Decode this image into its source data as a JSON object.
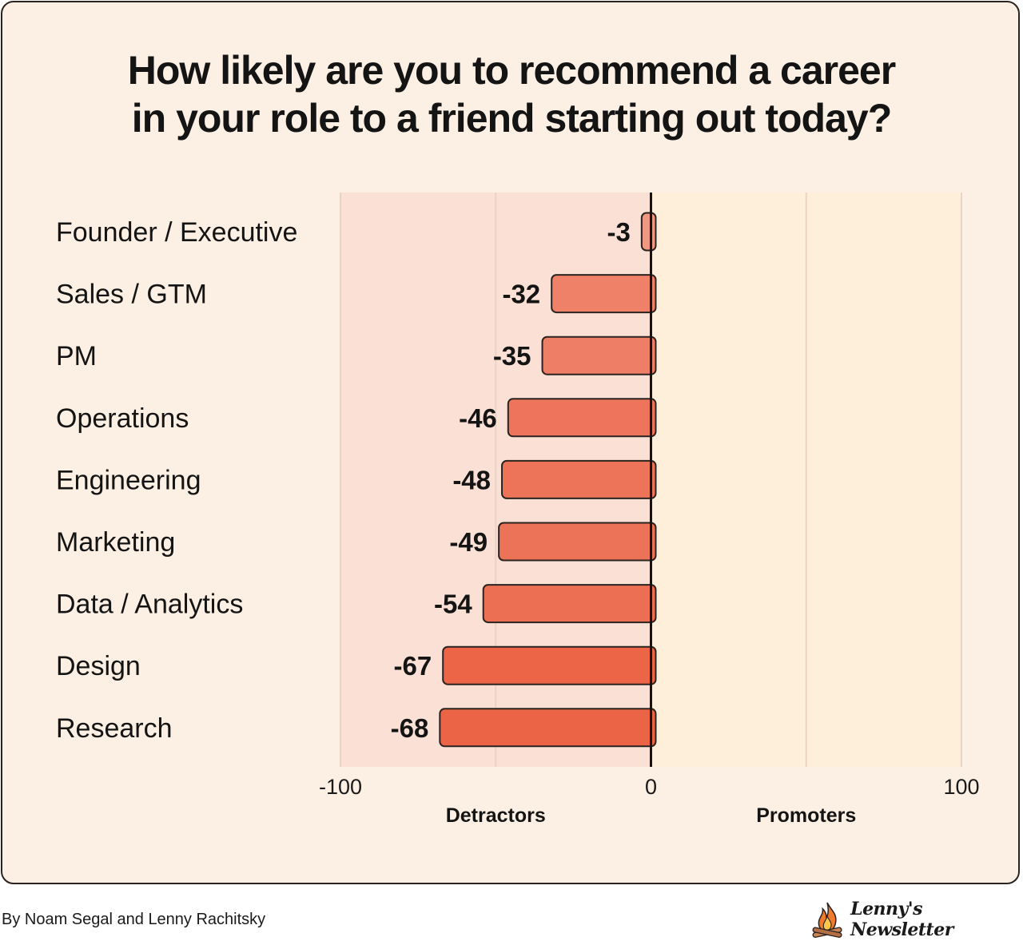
{
  "title_line1": "How likely are you to recommend a career",
  "title_line2": "in your role to a friend starting out today?",
  "footer": {
    "credit": "By Noam Segal and Lenny Rachitsky",
    "logo_text": "Lenny's Newsletter",
    "logo_icon": "campfire-icon"
  },
  "colors": {
    "card_background": "#fcefe4",
    "detractor_zone": "#fbe0d6",
    "promoter_zone": "#fdefd9",
    "bar_light": "#f19a86",
    "bar_dark": "#ec6446",
    "outline": "#2a2320"
  },
  "chart_data": {
    "type": "bar",
    "orientation": "horizontal",
    "categories": [
      "Founder / Executive",
      "Sales / GTM",
      "PM",
      "Operations",
      "Engineering",
      "Marketing",
      "Data / Analytics",
      "Design",
      "Research"
    ],
    "values": [
      -3,
      -32,
      -35,
      -46,
      -48,
      -49,
      -54,
      -67,
      -68
    ],
    "xlim": [
      -100,
      100
    ],
    "xticks": [
      "-100",
      "0",
      "100"
    ],
    "zones": [
      "Detractors",
      "Promoters"
    ],
    "grid": true
  }
}
